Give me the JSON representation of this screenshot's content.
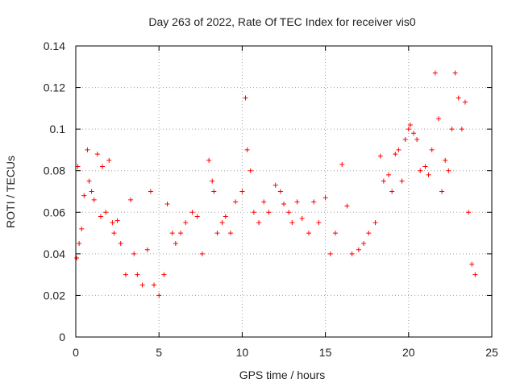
{
  "chart_data": {
    "type": "scatter",
    "title": "Day 263 of 2022, Rate Of TEC Index for receiver vis0",
    "xlabel": "GPS time / hours",
    "ylabel": "ROTI / TECUs",
    "xlim": [
      0,
      25
    ],
    "ylim": [
      0,
      0.14
    ],
    "xticks": [
      0,
      5,
      10,
      15,
      20,
      25
    ],
    "xtick_labels": [
      "0",
      "5",
      "10",
      "15",
      "20",
      "25"
    ],
    "yticks": [
      0,
      0.02,
      0.04,
      0.06,
      0.08,
      0.1,
      0.12,
      0.14
    ],
    "ytick_labels": [
      "0",
      "0.02",
      "0.04",
      "0.06",
      "0.08",
      "0.1",
      "0.12",
      "0.14"
    ],
    "grid": true,
    "marker": "plus",
    "color": "#ff0000",
    "series": [
      {
        "name": "ROTI",
        "x": [
          0.05,
          0.12,
          0.2,
          0.35,
          0.5,
          0.7,
          0.8,
          0.95,
          1.1,
          1.3,
          1.5,
          1.6,
          1.8,
          2.0,
          2.2,
          2.3,
          2.5,
          2.7,
          3.0,
          3.3,
          3.5,
          3.7,
          4.0,
          4.3,
          4.5,
          4.7,
          5.0,
          5.3,
          5.5,
          5.8,
          6.0,
          6.3,
          6.6,
          7.0,
          7.3,
          7.6,
          8.0,
          8.2,
          8.3,
          8.5,
          8.8,
          9.0,
          9.3,
          9.6,
          10.0,
          10.2,
          10.3,
          10.5,
          10.7,
          11.0,
          11.3,
          11.6,
          12.0,
          12.3,
          12.5,
          12.8,
          13.0,
          13.3,
          13.6,
          14.0,
          14.3,
          14.6,
          15.0,
          15.3,
          15.6,
          16.0,
          16.3,
          16.6,
          17.0,
          17.3,
          17.6,
          18.0,
          18.3,
          18.5,
          18.8,
          19.0,
          19.2,
          19.4,
          19.6,
          19.8,
          20.0,
          20.1,
          20.3,
          20.5,
          20.7,
          21.0,
          21.2,
          21.4,
          21.6,
          21.8,
          22.0,
          22.2,
          22.4,
          22.6,
          22.8,
          23.0,
          23.2,
          23.4,
          23.6,
          23.8,
          24.0
        ],
        "y": [
          0.038,
          0.082,
          0.045,
          0.052,
          0.068,
          0.09,
          0.075,
          0.07,
          0.066,
          0.088,
          0.058,
          0.082,
          0.06,
          0.085,
          0.055,
          0.05,
          0.056,
          0.045,
          0.03,
          0.066,
          0.04,
          0.03,
          0.025,
          0.042,
          0.07,
          0.025,
          0.02,
          0.03,
          0.064,
          0.05,
          0.045,
          0.05,
          0.055,
          0.06,
          0.058,
          0.04,
          0.085,
          0.075,
          0.07,
          0.05,
          0.055,
          0.058,
          0.05,
          0.065,
          0.07,
          0.115,
          0.09,
          0.08,
          0.06,
          0.055,
          0.065,
          0.06,
          0.073,
          0.07,
          0.064,
          0.06,
          0.055,
          0.065,
          0.057,
          0.05,
          0.065,
          0.055,
          0.067,
          0.04,
          0.05,
          0.083,
          0.063,
          0.04,
          0.042,
          0.045,
          0.05,
          0.055,
          0.087,
          0.075,
          0.078,
          0.07,
          0.088,
          0.09,
          0.075,
          0.095,
          0.1,
          0.102,
          0.098,
          0.095,
          0.08,
          0.082,
          0.078,
          0.09,
          0.127,
          0.105,
          0.07,
          0.085,
          0.08,
          0.1,
          0.127,
          0.115,
          0.1,
          0.113,
          0.06,
          0.035,
          0.03
        ]
      }
    ]
  }
}
